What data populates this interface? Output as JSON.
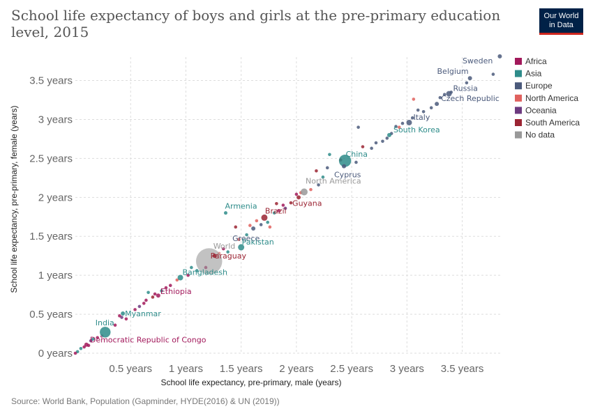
{
  "header": {
    "title": "School life expectancy of boys and girls at the pre-primary education level, 2015",
    "logo_line1": "Our World",
    "logo_line2": "in Data"
  },
  "footer": {
    "source": "Source: World Bank, Population (Gapminder, HYDE(2016) & UN (2019))"
  },
  "colors": {
    "Africa": "#a2195b",
    "Asia": "#2e8c8a",
    "Europe": "#4b5a7b",
    "North America": "#e0615e",
    "Oceania": "#6c3a7f",
    "South America": "#9b2433",
    "No data": "#999999"
  },
  "chart_data": {
    "type": "scatter",
    "title": "School life expectancy of boys and girls at the pre-primary education level, 2015",
    "xlabel": "School life expectancy, pre-primary, male (years)",
    "ylabel": "School life expectancy, pre-primary, female (years)",
    "xlim": [
      0,
      3.85
    ],
    "ylim": [
      0,
      3.8
    ],
    "xticks": [
      {
        "v": 0.5,
        "label": "0.5 years"
      },
      {
        "v": 1,
        "label": "1 years"
      },
      {
        "v": 1.5,
        "label": "1.5 years"
      },
      {
        "v": 2,
        "label": "2 years"
      },
      {
        "v": 2.5,
        "label": "2.5 years"
      },
      {
        "v": 3,
        "label": "3 years"
      },
      {
        "v": 3.5,
        "label": "3.5 years"
      }
    ],
    "yticks": [
      {
        "v": 0,
        "label": "0 years"
      },
      {
        "v": 0.5,
        "label": "0.5 years"
      },
      {
        "v": 1,
        "label": "1 years"
      },
      {
        "v": 1.5,
        "label": "1.5 years"
      },
      {
        "v": 2,
        "label": "2 years"
      },
      {
        "v": 2.5,
        "label": "2.5 years"
      },
      {
        "v": 3,
        "label": "3 years"
      },
      {
        "v": 3.5,
        "label": "3.5 years"
      }
    ],
    "grid": true,
    "legend": {
      "position": "right",
      "entries": [
        "Africa",
        "Asia",
        "Europe",
        "North America",
        "Oceania",
        "South America",
        "No data"
      ]
    },
    "labeled_points": [
      {
        "name": "Sweden",
        "x": 3.84,
        "y": 3.81,
        "region": "Europe",
        "size": 3
      },
      {
        "name": "Belgium",
        "x": 3.57,
        "y": 3.53,
        "region": "Europe",
        "size": 3
      },
      {
        "name": "Russia",
        "x": 3.38,
        "y": 3.33,
        "region": "Europe",
        "size": 4
      },
      {
        "name": "Czech Republic",
        "x": 3.27,
        "y": 3.2,
        "region": "Europe",
        "size": 3
      },
      {
        "name": "Italy",
        "x": 3.02,
        "y": 2.96,
        "region": "Europe",
        "size": 4
      },
      {
        "name": "South Korea",
        "x": 2.84,
        "y": 2.8,
        "region": "Asia",
        "size": 3
      },
      {
        "name": "China",
        "x": 2.44,
        "y": 2.47,
        "region": "Asia",
        "size": 9
      },
      {
        "name": "Cyprus",
        "x": 2.43,
        "y": 2.4,
        "region": "Europe",
        "size": 3
      },
      {
        "name": "North America",
        "x": 2.07,
        "y": 2.07,
        "region": "No data",
        "size": 5
      },
      {
        "name": "Guyana",
        "x": 2.02,
        "y": 2.0,
        "region": "South America",
        "size": 3
      },
      {
        "name": "Armenia",
        "x": 1.36,
        "y": 1.8,
        "region": "Asia",
        "size": 2.5
      },
      {
        "name": "Brazil",
        "x": 1.71,
        "y": 1.74,
        "region": "South America",
        "size": 4.5
      },
      {
        "name": "Greece",
        "x": 1.61,
        "y": 1.6,
        "region": "Europe",
        "size": 3
      },
      {
        "name": "World",
        "x": 1.21,
        "y": 1.18,
        "region": "No data",
        "size": 19
      },
      {
        "name": "Pakistan",
        "x": 1.5,
        "y": 1.36,
        "region": "Asia",
        "size": 4.5
      },
      {
        "name": "Paraguay",
        "x": 1.26,
        "y": 1.25,
        "region": "South America",
        "size": 3
      },
      {
        "name": "Bangladesh",
        "x": 0.95,
        "y": 0.97,
        "region": "Asia",
        "size": 4
      },
      {
        "name": "Ethiopia",
        "x": 0.75,
        "y": 0.74,
        "region": "Africa",
        "size": 3
      },
      {
        "name": "Myanmar",
        "x": 0.43,
        "y": 0.51,
        "region": "Asia",
        "size": 3
      },
      {
        "name": "India",
        "x": 0.27,
        "y": 0.27,
        "region": "Asia",
        "size": 8
      },
      {
        "name": "Democratic Republic of Congo",
        "x": 0.1,
        "y": 0.11,
        "region": "Africa",
        "size": 3
      }
    ],
    "points": [
      {
        "x": 3.78,
        "y": 3.58,
        "region": "Europe"
      },
      {
        "x": 3.54,
        "y": 3.47,
        "region": "Europe"
      },
      {
        "x": 3.4,
        "y": 3.35,
        "region": "Europe"
      },
      {
        "x": 3.34,
        "y": 3.32,
        "region": "Europe"
      },
      {
        "x": 3.3,
        "y": 3.28,
        "region": "Europe"
      },
      {
        "x": 3.22,
        "y": 3.15,
        "region": "Europe"
      },
      {
        "x": 3.15,
        "y": 3.1,
        "region": "Europe"
      },
      {
        "x": 3.1,
        "y": 3.12,
        "region": "Europe"
      },
      {
        "x": 3.05,
        "y": 3.02,
        "region": "Europe"
      },
      {
        "x": 3.06,
        "y": 3.26,
        "region": "North America"
      },
      {
        "x": 2.96,
        "y": 2.95,
        "region": "Europe"
      },
      {
        "x": 2.93,
        "y": 2.9,
        "region": "North America"
      },
      {
        "x": 2.9,
        "y": 2.91,
        "region": "Europe"
      },
      {
        "x": 2.86,
        "y": 2.82,
        "region": "Europe"
      },
      {
        "x": 2.82,
        "y": 2.76,
        "region": "Europe"
      },
      {
        "x": 2.78,
        "y": 2.72,
        "region": "Europe"
      },
      {
        "x": 2.72,
        "y": 2.7,
        "region": "Europe"
      },
      {
        "x": 2.68,
        "y": 2.63,
        "region": "Europe"
      },
      {
        "x": 2.6,
        "y": 2.65,
        "region": "South America"
      },
      {
        "x": 2.56,
        "y": 2.9,
        "region": "Europe"
      },
      {
        "x": 2.54,
        "y": 2.45,
        "region": "Europe"
      },
      {
        "x": 2.4,
        "y": 2.48,
        "region": "South America"
      },
      {
        "x": 2.3,
        "y": 2.55,
        "region": "Asia"
      },
      {
        "x": 2.28,
        "y": 2.38,
        "region": "Europe"
      },
      {
        "x": 2.24,
        "y": 2.26,
        "region": "Asia"
      },
      {
        "x": 2.2,
        "y": 2.16,
        "region": "Europe"
      },
      {
        "x": 2.18,
        "y": 2.34,
        "region": "South America"
      },
      {
        "x": 2.13,
        "y": 2.1,
        "region": "North America"
      },
      {
        "x": 2.04,
        "y": 2.06,
        "region": "North America"
      },
      {
        "x": 2.0,
        "y": 2.04,
        "region": "Africa"
      },
      {
        "x": 1.95,
        "y": 1.93,
        "region": "South America"
      },
      {
        "x": 1.9,
        "y": 1.86,
        "region": "Oceania"
      },
      {
        "x": 1.88,
        "y": 1.9,
        "region": "Africa"
      },
      {
        "x": 1.84,
        "y": 1.83,
        "region": "Africa"
      },
      {
        "x": 1.82,
        "y": 1.92,
        "region": "South America"
      },
      {
        "x": 1.8,
        "y": 1.8,
        "region": "Asia"
      },
      {
        "x": 1.76,
        "y": 1.62,
        "region": "North America"
      },
      {
        "x": 1.74,
        "y": 1.68,
        "region": "Asia"
      },
      {
        "x": 1.68,
        "y": 1.65,
        "region": "Europe"
      },
      {
        "x": 1.64,
        "y": 1.7,
        "region": "North America"
      },
      {
        "x": 1.58,
        "y": 1.64,
        "region": "North America"
      },
      {
        "x": 1.55,
        "y": 1.52,
        "region": "Asia"
      },
      {
        "x": 1.48,
        "y": 1.46,
        "region": "North America"
      },
      {
        "x": 1.45,
        "y": 1.62,
        "region": "South America"
      },
      {
        "x": 1.38,
        "y": 1.3,
        "region": "Asia"
      },
      {
        "x": 1.34,
        "y": 1.34,
        "region": "Africa"
      },
      {
        "x": 1.3,
        "y": 1.28,
        "region": "North America"
      },
      {
        "x": 1.18,
        "y": 1.1,
        "region": "Africa"
      },
      {
        "x": 1.1,
        "y": 1.06,
        "region": "Asia"
      },
      {
        "x": 1.05,
        "y": 1.1,
        "region": "Asia"
      },
      {
        "x": 1.02,
        "y": 1.0,
        "region": "Africa"
      },
      {
        "x": 0.92,
        "y": 0.94,
        "region": "North America"
      },
      {
        "x": 0.86,
        "y": 0.87,
        "region": "Africa"
      },
      {
        "x": 0.82,
        "y": 0.84,
        "region": "Africa"
      },
      {
        "x": 0.78,
        "y": 0.8,
        "region": "Asia"
      },
      {
        "x": 0.72,
        "y": 0.76,
        "region": "Africa"
      },
      {
        "x": 0.7,
        "y": 0.72,
        "region": "South America"
      },
      {
        "x": 0.66,
        "y": 0.78,
        "region": "Asia"
      },
      {
        "x": 0.64,
        "y": 0.68,
        "region": "Africa"
      },
      {
        "x": 0.62,
        "y": 0.64,
        "region": "Africa"
      },
      {
        "x": 0.58,
        "y": 0.6,
        "region": "Oceania"
      },
      {
        "x": 0.54,
        "y": 0.56,
        "region": "Africa"
      },
      {
        "x": 0.46,
        "y": 0.44,
        "region": "Africa"
      },
      {
        "x": 0.42,
        "y": 0.46,
        "region": "Oceania"
      },
      {
        "x": 0.4,
        "y": 0.48,
        "region": "Africa"
      },
      {
        "x": 0.36,
        "y": 0.36,
        "region": "Africa"
      },
      {
        "x": 0.24,
        "y": 0.22,
        "region": "Africa"
      },
      {
        "x": 0.2,
        "y": 0.2,
        "region": "Africa"
      },
      {
        "x": 0.16,
        "y": 0.18,
        "region": "Asia"
      },
      {
        "x": 0.14,
        "y": 0.16,
        "region": "Oceania"
      },
      {
        "x": 0.12,
        "y": 0.1,
        "region": "Africa"
      },
      {
        "x": 0.08,
        "y": 0.08,
        "region": "Africa"
      },
      {
        "x": 0.05,
        "y": 0.06,
        "region": "Asia"
      },
      {
        "x": 0.02,
        "y": 0.02,
        "region": "Asia"
      },
      {
        "x": 0.0,
        "y": 0.0,
        "region": "Africa"
      }
    ]
  }
}
